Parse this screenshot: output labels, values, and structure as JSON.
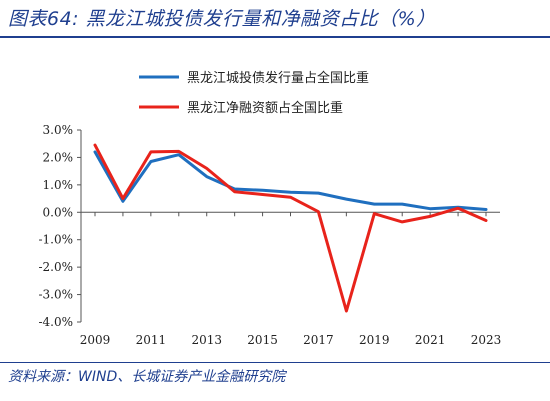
{
  "header": {
    "title": "图表64:  黑龙江城投债发行量和净融资占比（%）"
  },
  "footer": {
    "source": "资料来源：WIND、长城证券产业金融研究院"
  },
  "chart_data": {
    "type": "line",
    "x": [
      2009,
      2010,
      2011,
      2012,
      2013,
      2014,
      2015,
      2016,
      2017,
      2018,
      2019,
      2020,
      2021,
      2022,
      2023
    ],
    "x_tick_labels": [
      "2009",
      "2011",
      "2013",
      "2015",
      "2017",
      "2019",
      "2021",
      "2023"
    ],
    "y_tick_labels": [
      "3.0%",
      "2.0%",
      "1.0%",
      "0.0%",
      "-1.0%",
      "-2.0%",
      "-3.0%",
      "-4.0%"
    ],
    "ylim": [
      -4,
      3
    ],
    "grid": false,
    "legend_position": "top",
    "series": [
      {
        "name": "黑龙江城投债发行量占全国比重",
        "color": "#1f6fbf",
        "values": [
          2.2,
          0.4,
          1.85,
          2.1,
          1.3,
          0.85,
          0.8,
          0.73,
          0.7,
          0.48,
          0.3,
          0.3,
          0.13,
          0.18,
          0.1
        ]
      },
      {
        "name": "黑龙江净融资额占全国比重",
        "color": "#e8231b",
        "values": [
          2.45,
          0.5,
          2.2,
          2.22,
          1.6,
          0.75,
          0.65,
          0.55,
          0.02,
          -3.6,
          -0.05,
          -0.35,
          -0.15,
          0.15,
          -0.3
        ]
      }
    ]
  }
}
